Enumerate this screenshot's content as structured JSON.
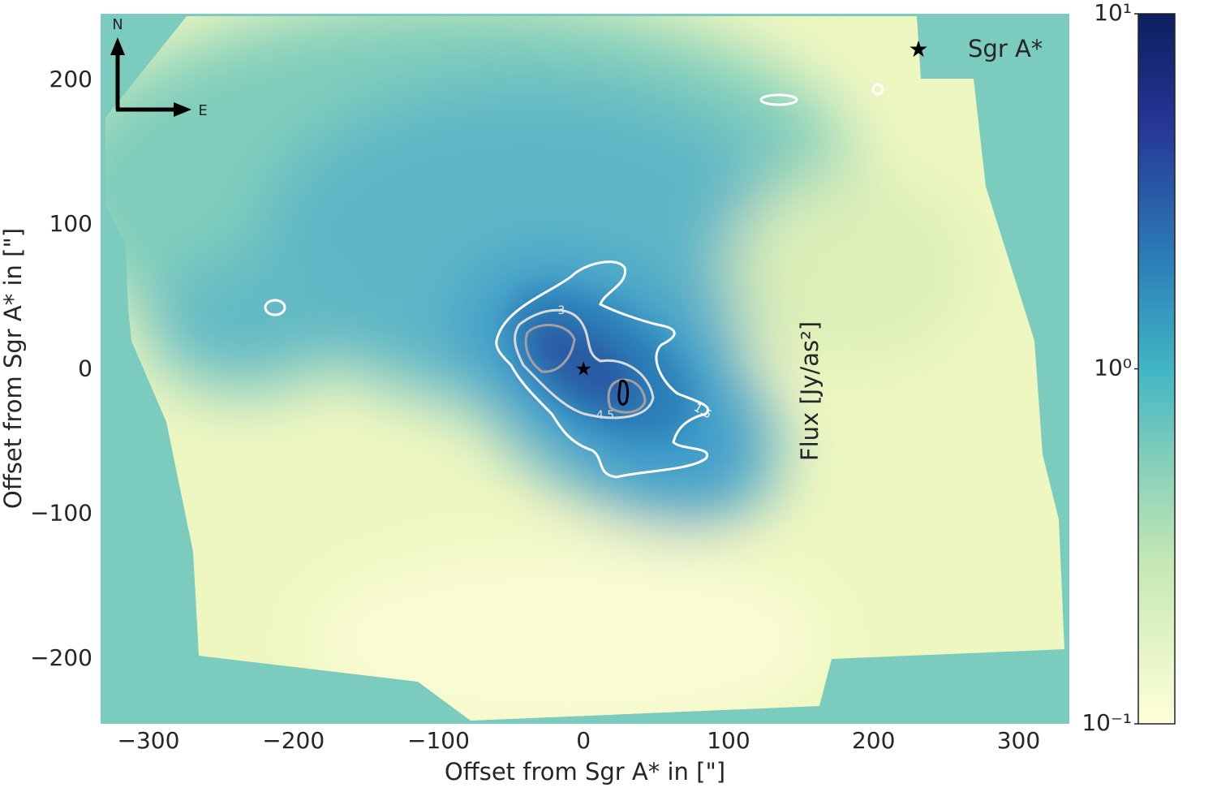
{
  "chart_data": {
    "type": "heatmap",
    "xlabel": "Offset from Sgr A* in [\"]",
    "ylabel": "Offset from Sgr A* in [\"]",
    "xlim": [
      -333,
      335
    ],
    "ylim": [
      -245,
      246
    ],
    "xticks": [
      {
        "value": -300,
        "label": "−300"
      },
      {
        "value": -200,
        "label": "−200"
      },
      {
        "value": -100,
        "label": "−100"
      },
      0,
      100,
      200,
      300
    ],
    "yticks": [
      {
        "value": -200,
        "label": "−200"
      },
      {
        "value": -100,
        "label": "−100"
      },
      0,
      100,
      200
    ],
    "colorbar": {
      "label": "Flux [Jy/as²]",
      "scale": "log",
      "lim": [
        0.1,
        10
      ],
      "ticks": [
        {
          "value": 0.1,
          "label": "10⁻¹"
        },
        {
          "value": 1,
          "label": "10⁰"
        },
        {
          "value": 10,
          "label": "10¹"
        }
      ]
    },
    "legend": {
      "name": "Sgr A*",
      "x": 0,
      "y": 0,
      "position": "upper right"
    },
    "contours": {
      "levels": [
        1.5,
        3,
        4.5,
        6
      ],
      "colors": [
        "#ffffff",
        "#d9d9d9",
        "#a0a0a0",
        "#000000"
      ]
    },
    "compass": {
      "north": "N",
      "east": "E"
    }
  }
}
